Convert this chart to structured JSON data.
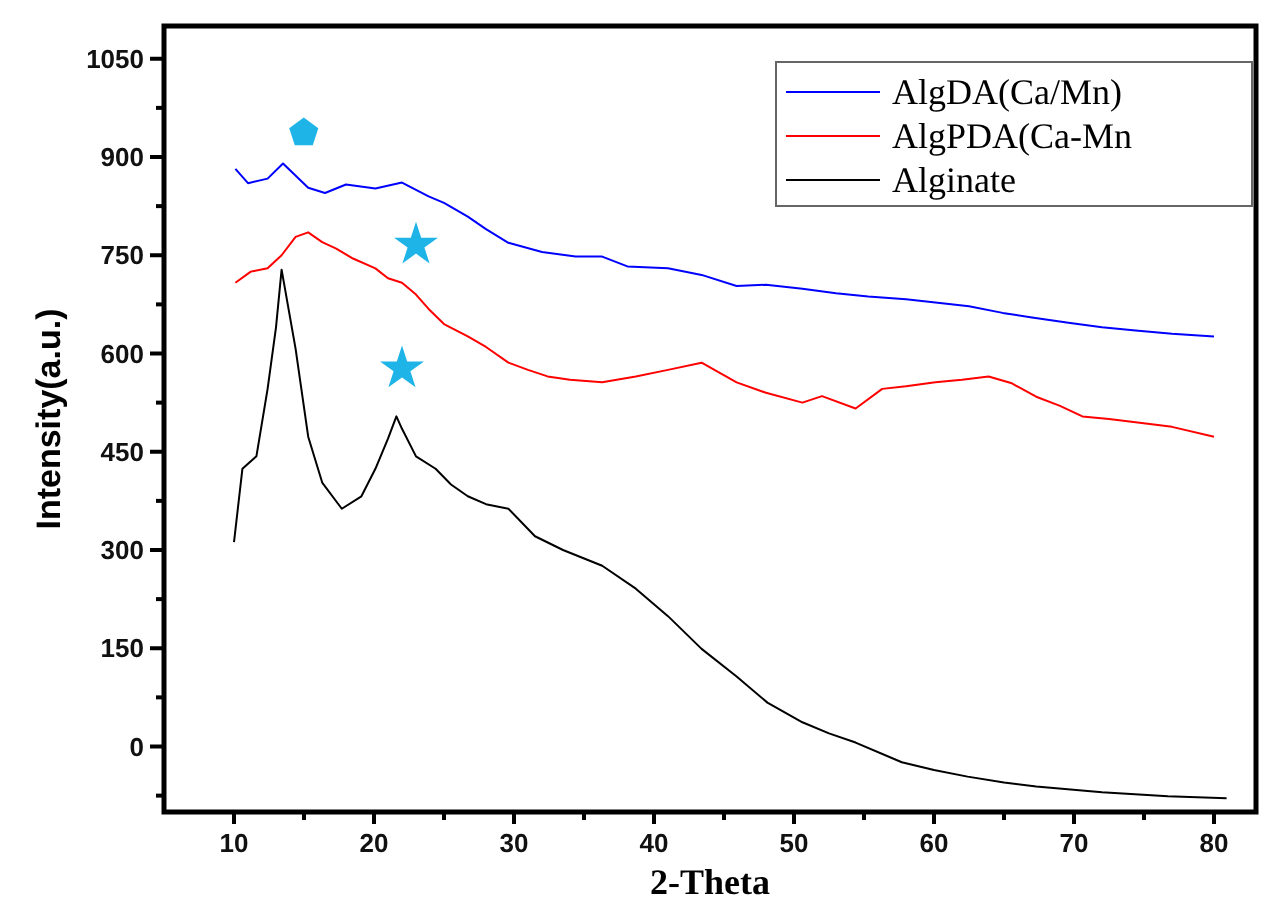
{
  "chart_data": {
    "type": "line",
    "xlabel": "2-Theta",
    "ylabel": "Intensity(a.u.)",
    "xlim": [
      5,
      83
    ],
    "xticks": [
      10,
      {
        "value": 15,
        "label": null
      },
      20,
      {
        "value": 25,
        "label": null
      },
      30,
      {
        "value": 35,
        "label": null
      },
      40,
      {
        "value": 45,
        "label": null
      },
      50,
      {
        "value": 55,
        "label": null
      },
      60,
      {
        "value": 65,
        "label": null
      },
      70,
      {
        "value": 75,
        "label": null
      },
      80
    ],
    "ylim": [
      -100,
      1100
    ],
    "yticks": [
      {
        "value": -75,
        "label": null
      },
      0,
      {
        "value": 75,
        "label": null
      },
      150,
      {
        "value": 225,
        "label": null
      },
      300,
      {
        "value": 375,
        "label": null
      },
      450,
      {
        "value": 525,
        "label": null
      },
      600,
      {
        "value": 675,
        "label": null
      },
      750,
      {
        "value": 825,
        "label": null
      },
      900,
      {
        "value": 975,
        "label": null
      },
      1050
    ],
    "legend": "top right",
    "grid": false,
    "marker": "none",
    "line_style": "solid",
    "series": [
      {
        "name": "AlgDA(Ca/Mn)",
        "color": "#0000ff",
        "x": [
          10.1,
          11,
          12.4,
          13.5,
          15.3,
          16.5,
          18,
          20.1,
          22,
          23.9,
          25,
          26.7,
          28,
          29.6,
          32,
          34.4,
          36.3,
          38.1,
          41,
          43.4,
          45.9,
          48,
          50.6,
          53,
          55.3,
          58,
          60.1,
          62.5,
          64.9,
          67,
          69.6,
          72,
          74.4,
          77,
          80
        ],
        "values": [
          882,
          860,
          867,
          890,
          853,
          845,
          858,
          852,
          861,
          840,
          830,
          809,
          790,
          769,
          755,
          748,
          748,
          733,
          730,
          720,
          703,
          705,
          699,
          692,
          687,
          683,
          678,
          672,
          662,
          655,
          647,
          640,
          635,
          630,
          626
        ]
      },
      {
        "name": "AlgPDA(Ca-Mn",
        "color": "#ff0000",
        "x": [
          10.1,
          11.2,
          12.4,
          13.4,
          14.4,
          15.3,
          16.3,
          17.3,
          18.5,
          20.1,
          21,
          22,
          23,
          23.9,
          25,
          26.7,
          28,
          29.6,
          31,
          32.4,
          34,
          36.3,
          38.7,
          41,
          43.4,
          45.9,
          48,
          50.6,
          52,
          54.4,
          56.3,
          58,
          60.1,
          62,
          63.9,
          65.5,
          67.3,
          69,
          70.6,
          72.5,
          74.4,
          77,
          80
        ],
        "values": [
          708,
          725,
          730,
          750,
          778,
          785,
          770,
          760,
          745,
          730,
          715,
          708,
          690,
          668,
          645,
          626,
          610,
          586,
          575,
          565,
          560,
          556,
          565,
          575,
          586,
          556,
          540,
          525,
          535,
          516,
          546,
          550,
          556,
          560,
          565,
          555,
          534,
          520,
          504,
          500,
          495,
          488,
          473
        ]
      },
      {
        "name": "Alginate",
        "color": "#000000",
        "x": [
          10,
          10.6,
          11.6,
          12.4,
          13,
          13.4,
          14.4,
          15.3,
          16.3,
          17.7,
          19.1,
          20.1,
          21,
          21.6,
          22,
          23,
          24.4,
          25.5,
          26.7,
          28,
          29.6,
          31.5,
          33.5,
          36.3,
          38.7,
          41,
          43.4,
          45.9,
          48.1,
          50.6,
          52.5,
          54.4,
          57.7,
          60,
          62.4,
          65,
          67.3,
          72,
          76.7,
          80.9
        ],
        "values": [
          312,
          424,
          443,
          546,
          640,
          728,
          607,
          473,
          403,
          363,
          382,
          424,
          470,
          504,
          485,
          443,
          424,
          400,
          382,
          370,
          363,
          321,
          300,
          276,
          241,
          199,
          149,
          107,
          67,
          37,
          20,
          6,
          -24,
          -36,
          -46,
          -55,
          -61,
          -70,
          -76,
          -79
        ]
      },
      {
        "type": "scatter",
        "marker": "star",
        "color": "#1fb4e8",
        "x": [
          23,
          22
        ],
        "values": [
          766,
          577
        ]
      }
    ]
  }
}
